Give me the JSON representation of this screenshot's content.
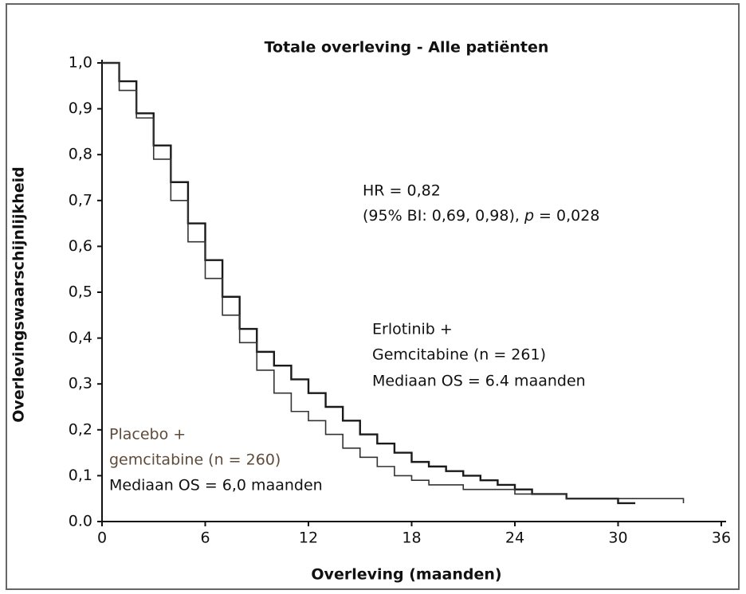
{
  "chart_data": {
    "type": "step",
    "title": "Totale overleving - Alle patiënten",
    "x_label": "Overleving (maanden)",
    "y_label": "Overlevingswaarschijnlijkheid",
    "xlim": [
      0,
      36
    ],
    "xticks": [
      0,
      6,
      12,
      18,
      24,
      30,
      36
    ],
    "ylim": [
      0,
      1
    ],
    "yticks": [
      {
        "value": 0,
        "label": "0.0"
      },
      {
        "value": 0.1,
        "label": "0,1"
      },
      {
        "value": 0.2,
        "label": "0,2"
      },
      {
        "value": 0.3,
        "label": "0,3"
      },
      {
        "value": 0.4,
        "label": "0,4"
      },
      {
        "value": 0.5,
        "label": "0,5"
      },
      {
        "value": 0.6,
        "label": "0,6"
      },
      {
        "value": 0.7,
        "label": "0,7"
      },
      {
        "value": 0.8,
        "label": "0,8"
      },
      {
        "value": 0.9,
        "label": "0,9"
      },
      {
        "value": 1,
        "label": "1,0"
      }
    ],
    "hr_text": [
      "HR = 0,82",
      "(95% BI: 0,69, 0,98), ",
      "p",
      " = 0,028"
    ],
    "erlotinib_label": [
      "Erlotinib +",
      "Gemcitabine (n = 261)",
      "Mediaan OS = 6.4 maanden"
    ],
    "placebo_label": [
      "Placebo +",
      "gemcitabine (n = 260)",
      "Mediaan OS = 6,0 maanden"
    ],
    "x": [
      0,
      1,
      2,
      3,
      4,
      5,
      6,
      7,
      8,
      9,
      10,
      11,
      12,
      13,
      14,
      15,
      16,
      17,
      18,
      19,
      20,
      21,
      22,
      23,
      24,
      25,
      26,
      27,
      28,
      29,
      30,
      31,
      32,
      33,
      33.8
    ],
    "series": [
      {
        "name": "Erlotinib + Gemcitabine",
        "color": "#1a1a1a",
        "values": [
          1.0,
          0.96,
          0.89,
          0.82,
          0.74,
          0.65,
          0.57,
          0.49,
          0.42,
          0.37,
          0.34,
          0.31,
          0.28,
          0.25,
          0.22,
          0.19,
          0.17,
          0.15,
          0.13,
          0.12,
          0.11,
          0.1,
          0.09,
          0.08,
          0.07,
          0.06,
          0.06,
          0.05,
          0.05,
          0.05,
          0.04,
          0.04,
          null,
          null,
          null
        ]
      },
      {
        "name": "Placebo + gemcitabine",
        "color": "#333333",
        "values": [
          1.0,
          0.94,
          0.88,
          0.79,
          0.7,
          0.61,
          0.53,
          0.45,
          0.39,
          0.33,
          0.28,
          0.24,
          0.22,
          0.19,
          0.16,
          0.14,
          0.12,
          0.1,
          0.09,
          0.08,
          0.08,
          0.07,
          0.07,
          0.07,
          0.06,
          0.06,
          0.06,
          0.05,
          0.05,
          0.05,
          0.05,
          0.05,
          0.05,
          0.05,
          0.04
        ]
      }
    ]
  }
}
